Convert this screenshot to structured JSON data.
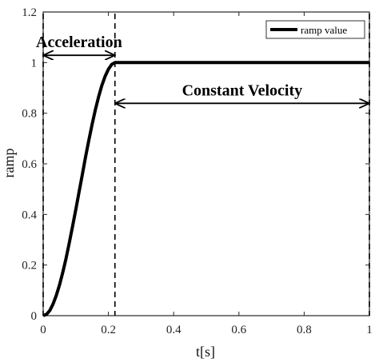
{
  "chart_data": {
    "type": "line",
    "xlabel": "t[s]",
    "ylabel": "ramp",
    "xlim": [
      0,
      1
    ],
    "ylim": [
      0,
      1.2
    ],
    "xticks": [
      "0",
      "0.2",
      "0.4",
      "0.6",
      "0.8",
      "1"
    ],
    "yticks": [
      "0",
      "0.2",
      "0.4",
      "0.6",
      "0.8",
      "1",
      "1.2"
    ],
    "grid": false,
    "legend_position": "top-right",
    "series": [
      {
        "name": "ramp value",
        "color": "#000000",
        "x": [
          0,
          0.01,
          0.02,
          0.03,
          0.04,
          0.05,
          0.06,
          0.07,
          0.08,
          0.09,
          0.1,
          0.11,
          0.12,
          0.13,
          0.14,
          0.15,
          0.16,
          0.17,
          0.18,
          0.19,
          0.2,
          0.21,
          0.22,
          0.3,
          0.4,
          0.5,
          0.6,
          0.7,
          0.8,
          0.9,
          1.0
        ],
        "y": [
          0,
          0.005,
          0.02,
          0.045,
          0.079,
          0.121,
          0.171,
          0.226,
          0.287,
          0.352,
          0.419,
          0.489,
          0.558,
          0.627,
          0.693,
          0.756,
          0.814,
          0.866,
          0.91,
          0.946,
          0.974,
          0.993,
          1.0,
          1.0,
          1.0,
          1.0,
          1.0,
          1.0,
          1.0,
          1.0,
          1.0
        ]
      }
    ],
    "annotations": [
      {
        "text": "Acceleration",
        "x_from": 0,
        "x_to": 0.22,
        "y": 1.13
      },
      {
        "text": "Constant Velocity",
        "x_from": 0.22,
        "x_to": 1.0,
        "y": 0.94
      }
    ],
    "vlines": [
      0,
      0.22,
      1.0
    ]
  }
}
